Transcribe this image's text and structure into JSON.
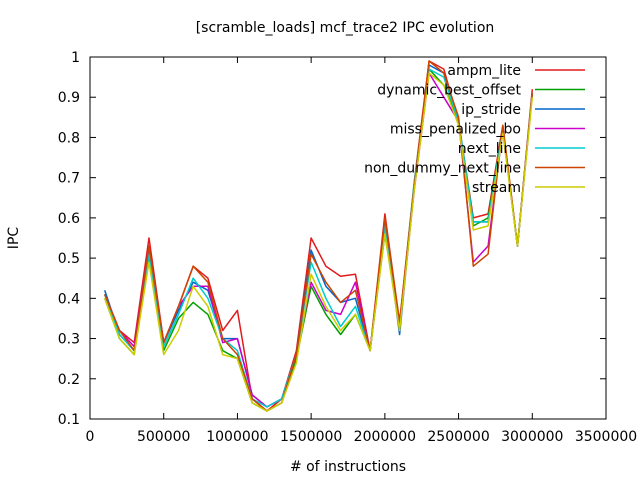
{
  "chart_data": {
    "type": "line",
    "title": "[scramble_loads] mcf_trace2 IPC evolution",
    "xlabel": "# of instructions",
    "ylabel": "IPC",
    "xlim": [
      0,
      3500000
    ],
    "ylim": [
      0.1,
      1.0
    ],
    "x_ticks": [
      0,
      500000,
      1000000,
      1500000,
      2000000,
      2500000,
      3000000,
      3500000
    ],
    "x_tick_labels": [
      "0",
      "500000",
      "1000000",
      "1500000",
      "2000000",
      "2500000",
      "3000000",
      "3500000"
    ],
    "y_ticks": [
      0.1,
      0.2,
      0.3,
      0.4,
      0.5,
      0.6,
      0.7,
      0.8,
      0.9,
      1.0
    ],
    "y_tick_labels": [
      "0.1",
      "0.2",
      "0.3",
      "0.4",
      "0.5",
      "0.6",
      "0.7",
      "0.8",
      "0.9",
      "1"
    ],
    "grid": false,
    "legend_position": "top-right",
    "x": [
      100000,
      200000,
      300000,
      400000,
      500000,
      600000,
      700000,
      800000,
      900000,
      1000000,
      1100000,
      1200000,
      1300000,
      1400000,
      1500000,
      1600000,
      1700000,
      1800000,
      1900000,
      2000000,
      2100000,
      2200000,
      2300000,
      2400000,
      2500000,
      2600000,
      2700000,
      2800000,
      2900000,
      3000000
    ],
    "series": [
      {
        "name": "ampm_lite",
        "color": "#e31a1c",
        "values": [
          0.41,
          0.32,
          0.29,
          0.55,
          0.29,
          0.38,
          0.48,
          0.45,
          0.32,
          0.37,
          0.15,
          0.12,
          0.15,
          0.27,
          0.55,
          0.48,
          0.455,
          0.46,
          0.27,
          0.61,
          0.34,
          0.69,
          0.99,
          0.97,
          0.84,
          0.6,
          0.61,
          0.83,
          0.53,
          0.92
        ]
      },
      {
        "name": "dynamic_best_offset",
        "color": "#00a000",
        "values": [
          0.4,
          0.3,
          0.26,
          0.5,
          0.27,
          0.35,
          0.39,
          0.36,
          0.27,
          0.25,
          0.14,
          0.12,
          0.14,
          0.25,
          0.43,
          0.36,
          0.31,
          0.36,
          0.27,
          0.56,
          0.33,
          0.68,
          0.97,
          0.93,
          0.84,
          0.58,
          0.6,
          0.82,
          0.53,
          0.91
        ]
      },
      {
        "name": "ip_stride",
        "color": "#0066cc",
        "values": [
          0.42,
          0.31,
          0.27,
          0.52,
          0.29,
          0.37,
          0.44,
          0.42,
          0.3,
          0.3,
          0.16,
          0.13,
          0.15,
          0.26,
          0.52,
          0.43,
          0.39,
          0.4,
          0.27,
          0.59,
          0.31,
          0.68,
          0.98,
          0.96,
          0.84,
          0.59,
          0.59,
          0.82,
          0.53,
          0.91
        ]
      },
      {
        "name": "miss_penalized_bo",
        "color": "#cc00cc",
        "values": [
          0.41,
          0.32,
          0.28,
          0.53,
          0.29,
          0.38,
          0.43,
          0.43,
          0.29,
          0.3,
          0.16,
          0.13,
          0.15,
          0.26,
          0.44,
          0.37,
          0.36,
          0.44,
          0.27,
          0.58,
          0.33,
          0.67,
          0.96,
          0.9,
          0.84,
          0.49,
          0.53,
          0.82,
          0.53,
          0.91
        ]
      },
      {
        "name": "next_line",
        "color": "#00cccc",
        "values": [
          0.41,
          0.31,
          0.27,
          0.51,
          0.28,
          0.36,
          0.45,
          0.4,
          0.3,
          0.27,
          0.15,
          0.13,
          0.15,
          0.26,
          0.49,
          0.4,
          0.33,
          0.38,
          0.27,
          0.58,
          0.33,
          0.69,
          0.97,
          0.95,
          0.84,
          0.59,
          0.59,
          0.82,
          0.53,
          0.91
        ]
      },
      {
        "name": "non_dummy_next_line",
        "color": "#cc4400",
        "values": [
          0.41,
          0.32,
          0.27,
          0.53,
          0.29,
          0.38,
          0.48,
          0.44,
          0.3,
          0.26,
          0.15,
          0.12,
          0.14,
          0.26,
          0.51,
          0.44,
          0.39,
          0.42,
          0.27,
          0.6,
          0.34,
          0.68,
          0.99,
          0.96,
          0.85,
          0.48,
          0.51,
          0.83,
          0.53,
          0.91
        ]
      },
      {
        "name": "stream",
        "color": "#cccc00",
        "values": [
          0.4,
          0.3,
          0.26,
          0.49,
          0.26,
          0.32,
          0.43,
          0.38,
          0.26,
          0.25,
          0.14,
          0.12,
          0.14,
          0.24,
          0.46,
          0.38,
          0.32,
          0.36,
          0.27,
          0.56,
          0.32,
          0.67,
          0.96,
          0.93,
          0.83,
          0.57,
          0.58,
          0.81,
          0.53,
          0.9
        ]
      }
    ]
  }
}
